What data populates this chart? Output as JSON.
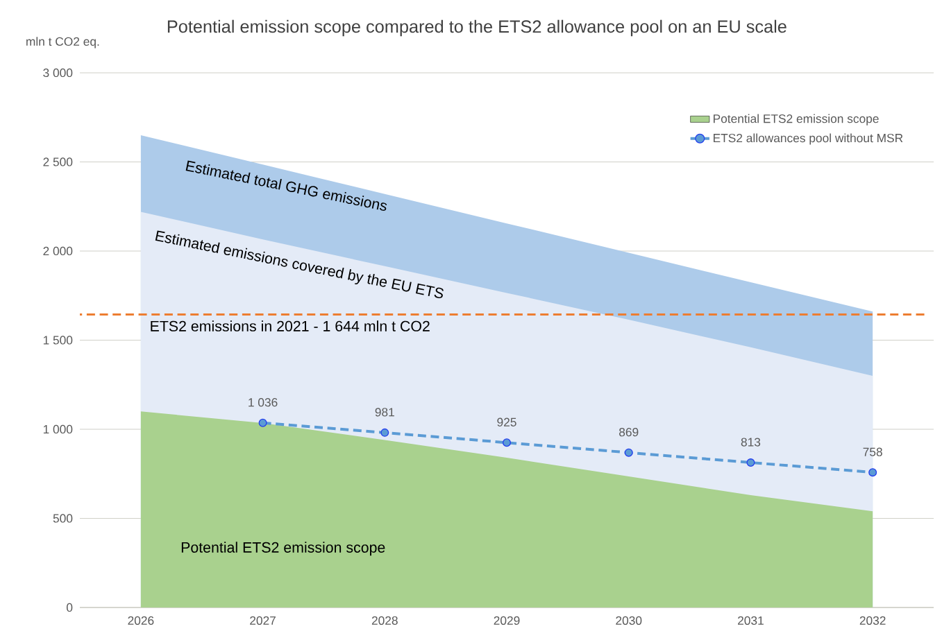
{
  "chart_data": {
    "type": "area",
    "title": "Potential emission scope compared to the ETS2 allowance pool on an EU scale",
    "ylabel": "mln t CO2 eq.",
    "categories": [
      "2026",
      "2027",
      "2028",
      "2029",
      "2030",
      "2031",
      "2032"
    ],
    "series": [
      {
        "color": "#adcbea",
        "values": [
          2650,
          2485,
          2320,
          2155,
          1990,
          1825,
          1660
        ]
      },
      {
        "color": "#e4ebf7",
        "values": [
          2220,
          2065,
          1915,
          1765,
          1615,
          1460,
          1300
        ]
      },
      {
        "name": "Potential ETS2 emission scope",
        "color": "#a9d18e",
        "values": [
          1100,
          1035,
          940,
          840,
          735,
          630,
          540
        ]
      },
      {
        "name": "ETS2 allowances pool without MSR",
        "type": "line",
        "marker": "circle",
        "color": "#5b9bd5",
        "values": [
          null,
          1036,
          981,
          925,
          869,
          813,
          758
        ],
        "value_labels": [
          null,
          "1 036",
          "981",
          "925",
          "869",
          "813",
          "758"
        ]
      }
    ],
    "ylim": [
      0,
      3000
    ],
    "yticks": [
      0,
      500,
      {
        "value": 1000,
        "label": "1 000"
      },
      {
        "value": 1500,
        "label": "1 500"
      },
      {
        "value": 2000,
        "label": "2 000"
      },
      {
        "value": 2500,
        "label": "2 500"
      },
      {
        "value": 3000,
        "label": "3 000"
      }
    ],
    "grid": "y",
    "legend": "top right",
    "line_style": "dashed",
    "ref_lines": [
      {
        "axis": "y",
        "value": 1644,
        "label": "ETS2 emissions in 2021 - 1 644 mln t CO2",
        "color": "#ed7d31",
        "line_style": "dashed"
      }
    ],
    "annotations": [
      "Estimated total GHG emissions",
      "Estimated emissions covered by the EU ETS",
      "Potential ETS2 emission scope"
    ]
  }
}
